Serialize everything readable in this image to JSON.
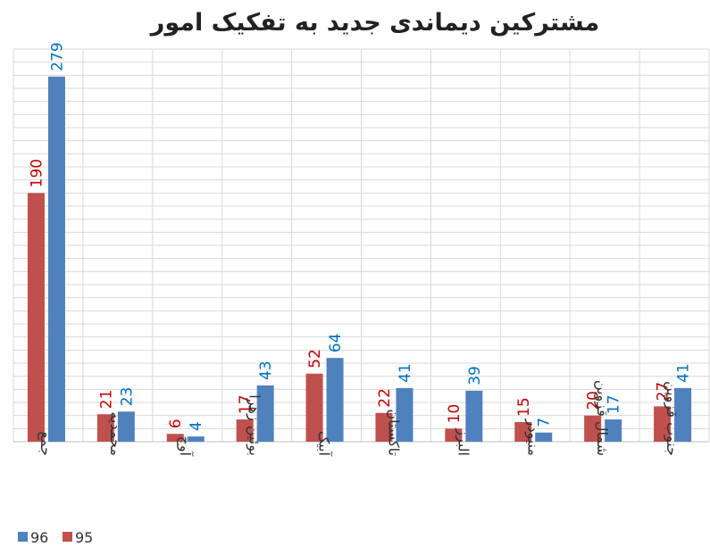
{
  "chart_data": {
    "type": "bar",
    "title": "مشترکین دیماندی جدید به تفکیک امور",
    "categories": [
      "جمع",
      "محمدیه",
      "آوج",
      "بوئین زهرا",
      "آبیک",
      "تاکستان",
      "البرز",
      "منیودر",
      "شمال قزوین",
      "جنوب قزوین"
    ],
    "series": [
      {
        "name": "95",
        "color": "#c0504d",
        "values": [
          190,
          21,
          6,
          17,
          52,
          22,
          10,
          15,
          20,
          27
        ]
      },
      {
        "name": "96",
        "color": "#4f81bd",
        "values": [
          279,
          23,
          4,
          43,
          64,
          41,
          39,
          7,
          17,
          41
        ]
      }
    ],
    "ylim": [
      0,
      300
    ],
    "yticks": [
      0,
      10,
      20,
      30,
      40,
      50,
      60,
      70,
      80,
      90,
      100,
      110,
      120,
      130,
      140,
      150,
      160,
      170,
      180,
      190,
      200,
      210,
      220,
      230,
      240,
      250,
      260,
      270,
      280,
      290,
      300
    ],
    "grid": true,
    "legend": "bottom-left"
  }
}
